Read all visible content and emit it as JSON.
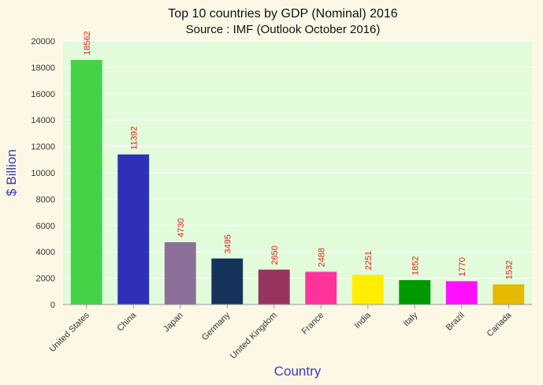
{
  "chart_data": {
    "type": "bar",
    "title": "Top 10 countries by GDP (Nominal) 2016",
    "subtitle": "Source : IMF (Outlook October 2016)",
    "xlabel": "Country",
    "ylabel": "$ Billion",
    "ylim": [
      0,
      20000
    ],
    "yticks": [
      0,
      2000,
      4000,
      6000,
      8000,
      10000,
      12000,
      14000,
      16000,
      18000,
      20000
    ],
    "grid": true,
    "categories": [
      "United States",
      "China",
      "Japan",
      "Germany",
      "United Kingdom",
      "France",
      "India",
      "Italy",
      "Brazil",
      "Canada"
    ],
    "values": [
      18562,
      11392,
      4730,
      3495,
      2650,
      2488,
      2251,
      1852,
      1770,
      1532
    ],
    "colors": [
      "#46d246",
      "#2f2fb8",
      "#8a6f98",
      "#14325a",
      "#96345f",
      "#ff3399",
      "#ffee00",
      "#009900",
      "#ff11ff",
      "#e6b800"
    ],
    "plot_background": "#e2fbdb",
    "grid_color": "#ffffff",
    "data_label_color": "#e0221b"
  }
}
